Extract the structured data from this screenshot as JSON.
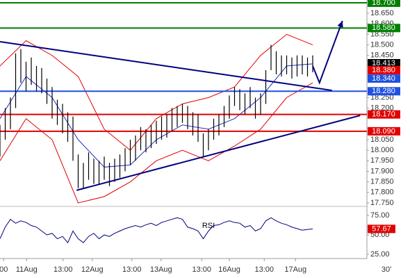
{
  "chart_data": [
    {
      "type": "ohlc",
      "xlim": [
        0,
        70.4
      ],
      "ylim": [
        17.74,
        18.713
      ],
      "xticks": [
        {
          "value": 0.7,
          "label": "00"
        },
        {
          "value": 5.1,
          "label": "11Aug"
        },
        {
          "value": 12.1,
          "label": "13:00"
        },
        {
          "value": 17.7,
          "label": "12Aug"
        },
        {
          "value": 25.3,
          "label": "13:00"
        },
        {
          "value": 30.9,
          "label": "13Aug"
        },
        {
          "value": 38.7,
          "label": "13:00"
        },
        {
          "value": 44,
          "label": "16Aug"
        },
        {
          "value": 50.7,
          "label": "13:00"
        },
        {
          "value": 56.7,
          "label": "17Aug"
        }
      ],
      "timeframe": "30'",
      "yticks": [
        {
          "value": 18.65,
          "label": "18.650"
        },
        {
          "value": 18.6,
          "label": "18.600"
        },
        {
          "value": 18.55,
          "label": "18.550"
        },
        {
          "value": 18.5,
          "label": "18.500"
        },
        {
          "value": 18.45,
          "label": "18.450"
        },
        {
          "value": 18.25,
          "label": "18.250"
        },
        {
          "value": 18.2,
          "label": "18.200"
        },
        {
          "value": 18.05,
          "label": "18.050"
        },
        {
          "value": 18.0,
          "label": "18.000"
        },
        {
          "value": 17.95,
          "label": "17.950"
        },
        {
          "value": 17.9,
          "label": "17.900"
        },
        {
          "value": 17.85,
          "label": "17.850"
        },
        {
          "value": 17.8,
          "label": "17.800"
        },
        {
          "value": 17.75,
          "label": "17.750"
        }
      ],
      "bar_color": "#000000",
      "high": [
        18.12,
        18.2,
        18.25,
        18.46,
        18.48,
        18.42,
        18.44,
        18.4,
        18.39,
        18.34,
        18.3,
        18.24,
        18.22,
        18.18,
        18.16,
        17.98,
        17.94,
        17.99,
        17.96,
        17.95,
        17.97,
        17.94,
        17.96,
        17.98,
        18.01,
        18.05,
        18.07,
        18.11,
        18.1,
        18.12,
        18.14,
        18.16,
        18.17,
        18.2,
        18.21,
        18.22,
        18.21,
        18.18,
        18.17,
        18.08,
        18.1,
        18.15,
        18.17,
        18.21,
        18.26,
        18.3,
        18.29,
        18.27,
        18.3,
        18.25,
        18.27,
        18.38,
        18.5,
        18.47,
        18.45,
        18.45,
        18.44,
        18.45,
        18.45,
        18.44,
        18.45
      ],
      "low": [
        17.97,
        18.05,
        18.1,
        18.2,
        18.32,
        18.28,
        18.31,
        18.28,
        18.27,
        18.22,
        18.15,
        18.12,
        18.08,
        18.04,
        17.95,
        17.82,
        17.82,
        17.86,
        17.84,
        17.84,
        17.86,
        17.83,
        17.85,
        17.87,
        17.9,
        17.93,
        17.95,
        18.0,
        17.99,
        18.01,
        18.03,
        18.05,
        18.06,
        18.09,
        18.11,
        18.13,
        18.1,
        18.07,
        18.04,
        17.97,
        18.0,
        18.05,
        18.07,
        18.11,
        18.15,
        18.21,
        18.19,
        18.17,
        18.2,
        18.15,
        18.17,
        18.22,
        18.38,
        18.36,
        18.35,
        18.36,
        18.34,
        18.35,
        18.36,
        18.35,
        18.37
      ],
      "bands_x": [
        0,
        5,
        10,
        15,
        20,
        25,
        30,
        35,
        40,
        45,
        50,
        55,
        60
      ],
      "bands": [
        {
          "color": "#e00000",
          "values": [
            18.4,
            18.52,
            18.45,
            18.35,
            18.1,
            18.0,
            18.15,
            18.22,
            18.25,
            18.3,
            18.45,
            18.55,
            18.5
          ]
        },
        {
          "color": "#e00000",
          "values": [
            17.95,
            18.15,
            18.05,
            17.75,
            17.78,
            17.85,
            17.95,
            18.0,
            17.95,
            18.02,
            18.1,
            18.25,
            18.32
          ]
        },
        {
          "color": "#2030c0",
          "values": [
            18.15,
            18.35,
            18.25,
            18.05,
            17.92,
            17.93,
            18.05,
            18.12,
            18.1,
            18.15,
            18.25,
            18.4,
            18.41
          ]
        }
      ],
      "trendlines": [
        {
          "color": "#000080",
          "x": [
            0,
            63.7
          ],
          "y": [
            18.515,
            18.284
          ]
        },
        {
          "color": "#000080",
          "x": [
            14.7,
            69.1
          ],
          "y": [
            17.81,
            18.165
          ]
        },
        {
          "color": "#000080",
          "x": [
            60,
            61.3,
            65.7
          ],
          "y": [
            18.4,
            18.32,
            18.614
          ],
          "arrow": true
        }
      ],
      "price_labels": [
        {
          "value": 18.7,
          "label": "18.700",
          "color": "#008000",
          "line": true
        },
        {
          "value": 18.58,
          "label": "18.580",
          "color": "#008000",
          "line": true
        },
        {
          "value": 18.413,
          "label": "18.413",
          "color": "#000000",
          "line": false
        },
        {
          "value": 18.38,
          "label": "18.380",
          "color": "#e00000",
          "line": false
        },
        {
          "value": 18.34,
          "label": "18.340",
          "color": "#2050e0",
          "line": false
        },
        {
          "value": 18.28,
          "label": "18.280",
          "color": "#2050e0",
          "line": true
        },
        {
          "value": 18.17,
          "label": "18.170",
          "color": "#e00000",
          "line": true
        },
        {
          "value": 18.09,
          "label": "18.090",
          "color": "#e00000",
          "line": true
        }
      ]
    },
    {
      "type": "line",
      "title": "RSI",
      "ylim": [
        21.4,
        83.9
      ],
      "yticks": [
        {
          "value": 75,
          "label": "75.00"
        },
        {
          "value": 50,
          "label": "50.00"
        },
        {
          "value": 25,
          "label": "25.00"
        }
      ],
      "color": "#000080",
      "values": [
        45,
        60,
        70,
        65,
        68,
        66,
        62,
        60,
        55,
        50,
        52,
        45,
        48,
        40,
        55,
        45,
        40,
        48,
        52,
        45,
        50,
        48,
        52,
        55,
        58,
        60,
        62,
        60,
        63,
        65,
        62,
        66,
        68,
        70,
        72,
        70,
        60,
        58,
        55,
        45,
        55,
        62,
        63,
        66,
        68,
        66,
        65,
        60,
        62,
        55,
        58,
        68,
        72,
        68,
        65,
        63,
        60,
        58,
        56,
        57,
        57.67
      ],
      "last": {
        "value": 57.67,
        "label": "57.67",
        "color": "#e00000"
      }
    }
  ]
}
